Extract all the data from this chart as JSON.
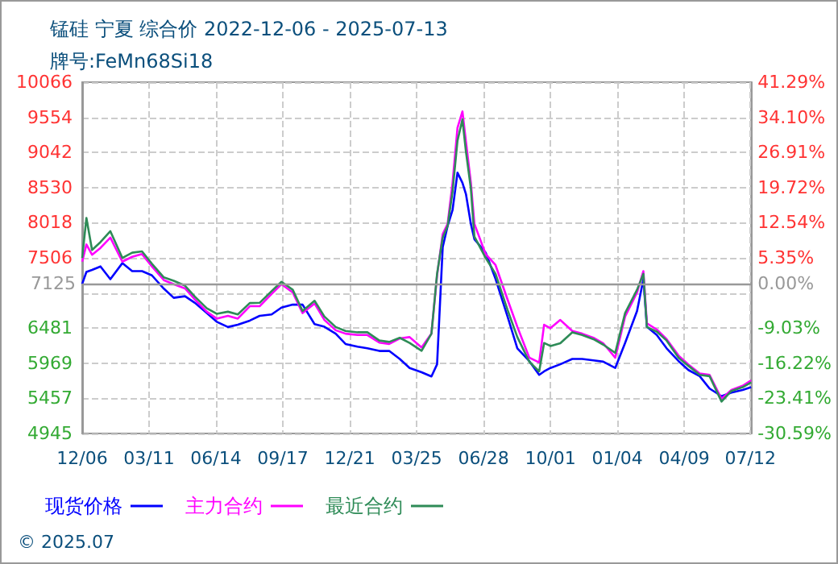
{
  "chart_data": {
    "type": "line",
    "title": "锰硅 宁夏 综合价 2022-12-06 - 2025-07-13",
    "subtitle": "牌号:FeMn68Si18",
    "annotations": [
      "© 2025.07"
    ],
    "x": [
      "2022-12-06",
      "2022-12-12",
      "2022-12-20",
      "2023-01-01",
      "2023-01-15",
      "2023-02-01",
      "2023-02-15",
      "2023-03-01",
      "2023-03-15",
      "2023-04-01",
      "2023-04-15",
      "2023-05-01",
      "2023-05-15",
      "2023-06-01",
      "2023-06-15",
      "2023-07-01",
      "2023-07-15",
      "2023-08-01",
      "2023-08-15",
      "2023-09-01",
      "2023-09-15",
      "2023-10-01",
      "2023-10-15",
      "2023-11-01",
      "2023-11-15",
      "2023-12-01",
      "2023-12-15",
      "2024-01-01",
      "2024-01-15",
      "2024-02-01",
      "2024-02-15",
      "2024-03-01",
      "2024-03-15",
      "2024-04-01",
      "2024-04-15",
      "2024-04-23",
      "2024-05-01",
      "2024-05-08",
      "2024-05-15",
      "2024-05-22",
      "2024-05-29",
      "2024-06-03",
      "2024-06-10",
      "2024-06-15",
      "2024-07-01",
      "2024-07-15",
      "2024-08-01",
      "2024-08-15",
      "2024-09-01",
      "2024-09-15",
      "2024-09-22",
      "2024-10-01",
      "2024-10-15",
      "2024-11-01",
      "2024-11-15",
      "2024-12-01",
      "2024-12-15",
      "2025-01-01",
      "2025-01-15",
      "2025-02-01",
      "2025-02-10",
      "2025-02-15",
      "2025-03-01",
      "2025-03-15",
      "2025-04-01",
      "2025-04-15",
      "2025-05-01",
      "2025-05-15",
      "2025-06-01",
      "2025-06-15",
      "2025-07-01",
      "2025-07-13"
    ],
    "series": [
      {
        "name": "现货价格",
        "color": "#0000ff",
        "values": [
          7125,
          7300,
          7330,
          7380,
          7195,
          7428,
          7312,
          7312,
          7250,
          7056,
          6923,
          6946,
          6850,
          6700,
          6574,
          6497,
          6530,
          6590,
          6660,
          6680,
          6780,
          6823,
          6823,
          6540,
          6500,
          6400,
          6250,
          6210,
          6186,
          6148,
          6148,
          6031,
          5900,
          5838,
          5776,
          5954,
          7661,
          7971,
          8204,
          8746,
          8600,
          8436,
          8000,
          7778,
          7582,
          7200,
          6652,
          6186,
          6000,
          5800,
          5850,
          5900,
          5954,
          6031,
          6031,
          6010,
          5992,
          5900,
          6264,
          6730,
          7195,
          6500,
          6380,
          6186,
          6000,
          5870,
          5780,
          5600,
          5488,
          5540,
          5580,
          5620
        ]
      },
      {
        "name": "主力合约",
        "color": "#ff00ff",
        "values": [
          7450,
          7700,
          7550,
          7650,
          7800,
          7450,
          7520,
          7560,
          7380,
          7180,
          7120,
          7060,
          6900,
          6720,
          6620,
          6660,
          6620,
          6800,
          6800,
          6980,
          7120,
          7000,
          6700,
          6840,
          6600,
          6450,
          6400,
          6380,
          6380,
          6270,
          6250,
          6330,
          6350,
          6200,
          6400,
          7250,
          7850,
          8000,
          8600,
          9400,
          9640,
          9200,
          8600,
          8000,
          7560,
          7400,
          6900,
          6500,
          6050,
          5980,
          6530,
          6480,
          6600,
          6440,
          6400,
          6340,
          6260,
          6050,
          6650,
          7000,
          7312,
          6550,
          6460,
          6320,
          6080,
          5950,
          5820,
          5800,
          5450,
          5580,
          5640,
          5720
        ]
      },
      {
        "name": "最近合约",
        "color": "#2e8b57",
        "values": [
          7505,
          8087,
          7620,
          7735,
          7894,
          7505,
          7580,
          7600,
          7420,
          7220,
          7170,
          7100,
          6940,
          6770,
          6690,
          6720,
          6680,
          6846,
          6850,
          7020,
          7156,
          7040,
          6730,
          6880,
          6650,
          6497,
          6440,
          6420,
          6420,
          6300,
          6280,
          6340,
          6264,
          6150,
          6400,
          7272,
          7800,
          7971,
          8475,
          9212,
          9522,
          9056,
          8514,
          7816,
          7505,
          7272,
          6750,
          6350,
          5990,
          5850,
          6264,
          6220,
          6260,
          6420,
          6380,
          6320,
          6240,
          6120,
          6700,
          7040,
          7272,
          6497,
          6430,
          6300,
          6050,
          5930,
          5800,
          5780,
          5410,
          5565,
          5620,
          5690
        ]
      }
    ],
    "xlim": [
      "2022-12-06",
      "2025-07-13"
    ],
    "xticks": [
      {
        "value": "2022-12-06",
        "label": "12/06"
      },
      {
        "value": "2023-03-11",
        "label": "03/11"
      },
      {
        "value": "2023-06-14",
        "label": "06/14"
      },
      {
        "value": "2023-09-17",
        "label": "09/17"
      },
      {
        "value": "2023-12-21",
        "label": "12/21"
      },
      {
        "value": "2024-03-25",
        "label": "03/25"
      },
      {
        "value": "2024-06-28",
        "label": "06/28"
      },
      {
        "value": "2024-10-01",
        "label": "10/01"
      },
      {
        "value": "2025-01-04",
        "label": "01/04"
      },
      {
        "value": "2025-04-09",
        "label": "04/09"
      },
      {
        "value": "2025-07-12",
        "label": "07/12"
      }
    ],
    "ylim": [
      4945,
      10066
    ],
    "yticks": [
      4945,
      5457,
      5969,
      6481,
      {
        "value": 6993,
        "label": null
      },
      7506,
      8018,
      8530,
      9042,
      9554,
      10066
    ],
    "y2lim": [
      -30.59,
      41.29
    ],
    "y2ticks": [
      {
        "value": -30.59,
        "label": "-30.59%"
      },
      {
        "value": -23.41,
        "label": "-23.41%"
      },
      {
        "value": -16.22,
        "label": "-16.22%"
      },
      {
        "value": -9.03,
        "label": "-9.03%"
      },
      {
        "value": 0,
        "label": "0.00%"
      },
      {
        "value": 5.35,
        "label": "5.35%"
      },
      {
        "value": 12.54,
        "label": "12.54%"
      },
      {
        "value": 19.72,
        "label": "19.72%"
      },
      {
        "value": 26.91,
        "label": "26.91%"
      },
      {
        "value": 34.1,
        "label": "34.10%"
      },
      {
        "value": 41.29,
        "label": "41.29%"
      }
    ],
    "ref_lines": [
      {
        "axis": "y",
        "value": 7125,
        "label": "7125",
        "color": "#999999"
      }
    ],
    "grid": true,
    "legend": "bottom",
    "marker": "none",
    "line_style": "solid"
  }
}
